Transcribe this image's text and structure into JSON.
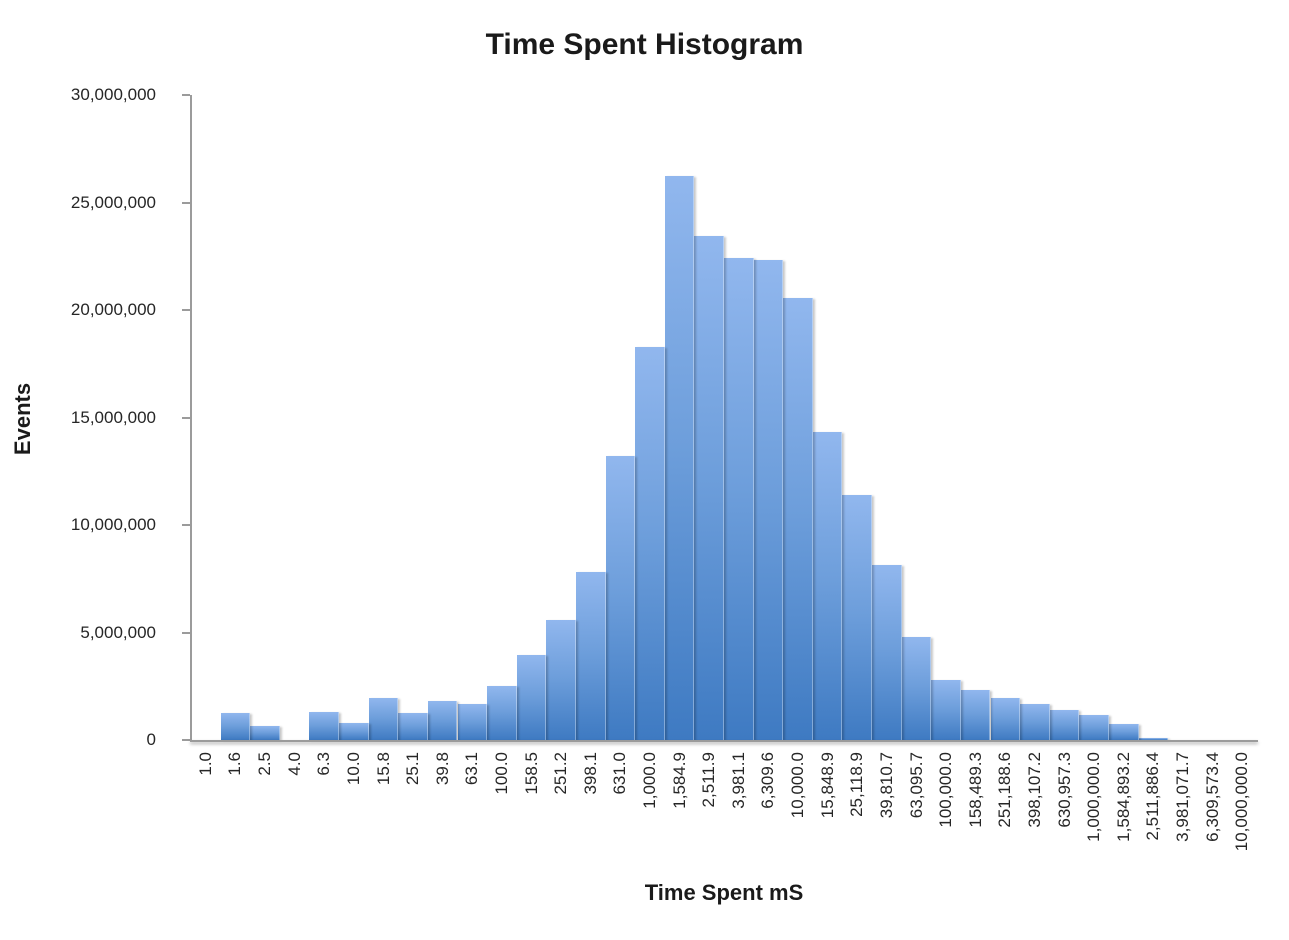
{
  "chart_data": {
    "type": "bar",
    "title": "Time Spent Histogram",
    "xlabel": "Time Spent mS",
    "ylabel": "Events",
    "legend_position": "none",
    "grid": false,
    "bar_gap": 0,
    "ylim": [
      0,
      30000000
    ],
    "y_tick_interval": 5000000,
    "y_tick_labels": [
      "0",
      "5,000,000",
      "10,000,000",
      "15,000,000",
      "20,000,000",
      "25,000,000",
      "30,000,000"
    ],
    "categories": [
      "1.0",
      "1.6",
      "2.5",
      "4.0",
      "6.3",
      "10.0",
      "15.8",
      "25.1",
      "39.8",
      "63.1",
      "100.0",
      "158.5",
      "251.2",
      "398.1",
      "631.0",
      "1,000.0",
      "1,584.9",
      "2,511.9",
      "3,981.1",
      "6,309.6",
      "10,000.0",
      "15,848.9",
      "25,118.9",
      "39,810.7",
      "63,095.7",
      "100,000.0",
      "158,489.3",
      "251,188.6",
      "398,107.2",
      "630,957.3",
      "1,000,000.0",
      "1,584,893.2",
      "2,511,886.4",
      "3,981,071.7",
      "6,309,573.4",
      "10,000,000.0"
    ],
    "values": [
      0,
      1250000,
      650000,
      0,
      1320000,
      780000,
      1950000,
      1270000,
      1820000,
      1700000,
      2500000,
      3950000,
      5600000,
      7800000,
      13200000,
      18300000,
      26250000,
      23450000,
      22400000,
      22350000,
      20550000,
      14350000,
      11400000,
      8150000,
      4800000,
      2800000,
      2350000,
      1950000,
      1700000,
      1400000,
      1150000,
      750000,
      80000,
      0,
      0,
      0
    ],
    "colors": {
      "bar_gradient_top": "#91b7ee",
      "bar_gradient_bottom": "#3e7ac2",
      "axis_line": "#9b9b9b",
      "text": "#262626",
      "title_text": "#1a1a1a"
    }
  }
}
